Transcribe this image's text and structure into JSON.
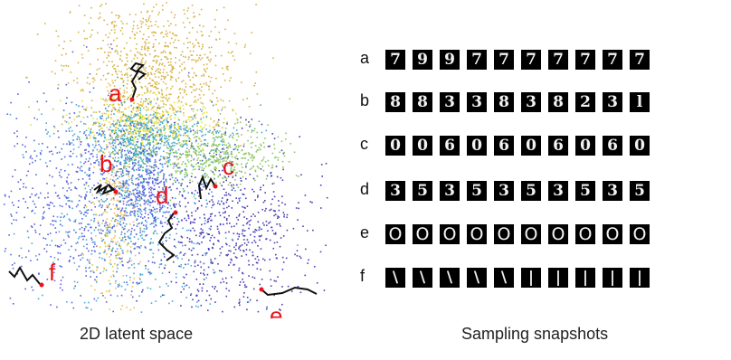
{
  "captions": {
    "latent": "2D latent space",
    "snapshots": "Sampling snapshots"
  },
  "trajectory_labels": [
    "a",
    "b",
    "c",
    "d",
    "e",
    "f"
  ],
  "colors": {
    "label": "#e8141c",
    "trajectory": "#111111",
    "clusters": [
      "#d6b24a",
      "#e9e232",
      "#4aa9d8",
      "#3ba7a5",
      "#5864e0",
      "#4b3fb5",
      "#8cc865",
      "#e9c24f"
    ]
  },
  "snapshot_rows": [
    {
      "label": "a",
      "glyphs": [
        "7",
        "9",
        "9",
        "7",
        "7",
        "7",
        "7",
        "7",
        "7",
        "7"
      ]
    },
    {
      "label": "b",
      "glyphs": [
        "8",
        "8",
        "3",
        "3",
        "8",
        "3",
        "8",
        "2",
        "3",
        "l"
      ]
    },
    {
      "label": "c",
      "glyphs": [
        "0",
        "0",
        "6",
        "0",
        "6",
        "0",
        "6",
        "0",
        "6",
        "0"
      ]
    },
    {
      "label": "d",
      "glyphs": [
        "3",
        "5",
        "3",
        "5",
        "3",
        "5",
        "3",
        "5",
        "3",
        "5"
      ]
    },
    {
      "label": "e",
      "glyphs": [
        "O",
        "O",
        "O",
        "O",
        "O",
        "O",
        "O",
        "O",
        "O",
        "O"
      ]
    },
    {
      "label": "f",
      "glyphs": [
        "\\",
        "\\",
        "\\",
        "\\",
        "\\",
        "|",
        "|",
        "|",
        "|",
        "|"
      ]
    }
  ]
}
